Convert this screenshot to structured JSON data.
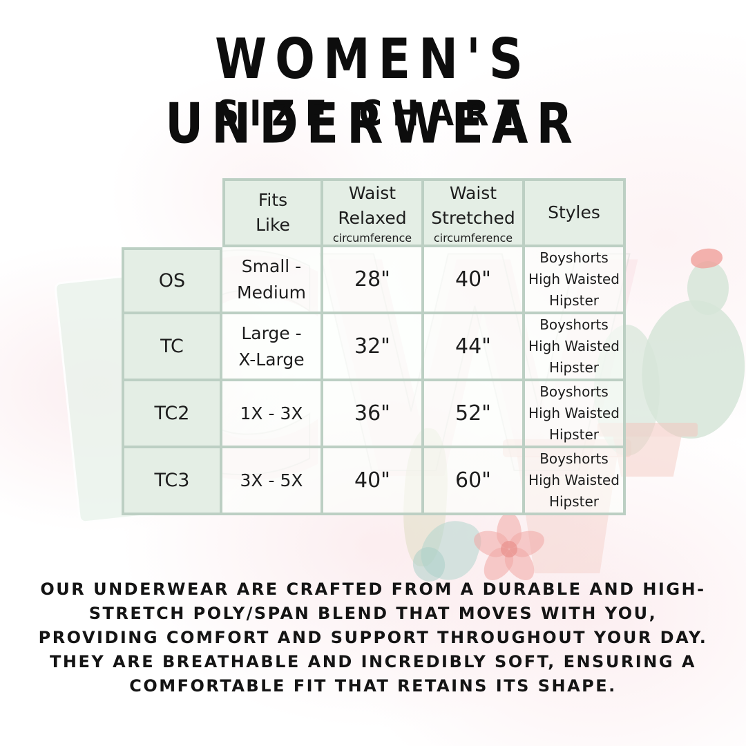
{
  "title": "WOMEN'S UNDERWEAR",
  "subtitle": "SIZE CHART",
  "watermark": {
    "letters": "CW"
  },
  "table": {
    "headers": [
      {
        "label": ""
      },
      {
        "label": "Fits\nLike",
        "sub": ""
      },
      {
        "label": "Waist\nRelaxed",
        "sub": "circumference"
      },
      {
        "label": "Waist\nStretched",
        "sub": "circumference"
      },
      {
        "label": "Styles",
        "sub": ""
      }
    ],
    "rows": [
      {
        "size": "OS",
        "fits_like": "Small -\nMedium",
        "waist_relaxed": "28\"",
        "waist_stretched": "40\"",
        "styles": "Boyshorts\nHigh Waisted\nHipster"
      },
      {
        "size": "TC",
        "fits_like": "Large -\nX-Large",
        "waist_relaxed": "32\"",
        "waist_stretched": "44\"",
        "styles": "Boyshorts\nHigh Waisted\nHipster"
      },
      {
        "size": "TC2",
        "fits_like": "1X - 3X",
        "waist_relaxed": "36\"",
        "waist_stretched": "52\"",
        "styles": "Boyshorts\nHigh Waisted\nHipster"
      },
      {
        "size": "TC3",
        "fits_like": "3X - 5X",
        "waist_relaxed": "40\"",
        "waist_stretched": "60\"",
        "styles": "Boyshorts\nHigh Waisted\nHipster"
      }
    ]
  },
  "description": "OUR UNDERWEAR ARE CRAFTED FROM A DURABLE AND HIGH-\nSTRETCH POLY/SPAN BLEND THAT MOVES WITH YOU,\nPROVIDING COMFORT AND SUPPORT THROUGHOUT YOUR DAY.\nTHEY ARE BREATHABLE AND INCREDIBLY SOFT, ENSURING A\nCOMFORTABLE FIT THAT RETAINS ITS SHAPE.",
  "colors": {
    "table_border": "#bccfc3",
    "table_header_bg": "#e4eee5",
    "text": "#161616",
    "accent_pink": "#f0a8a4",
    "accent_green": "#d6e5d8"
  }
}
